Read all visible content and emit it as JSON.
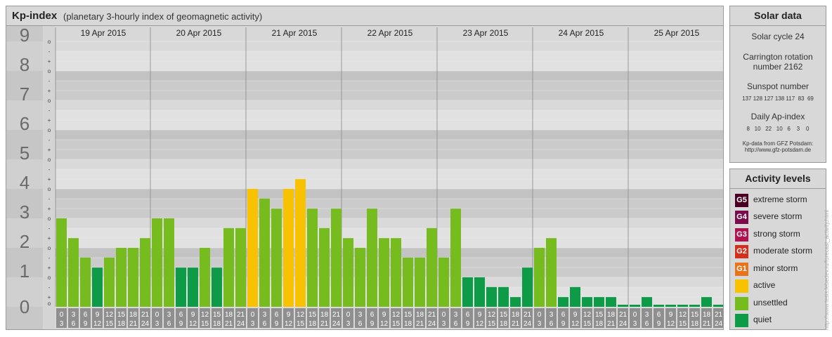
{
  "header": {
    "title": "Kp-index",
    "subtitle": "(planetary 3-hourly index of geomagnetic activity)"
  },
  "chart_data": {
    "type": "bar",
    "title": "Kp-index",
    "subtitle": "(planetary 3-hourly index of geomagnetic activity)",
    "ylim": [
      0,
      9
    ],
    "y_ticks": [
      "0",
      "1",
      "2",
      "3",
      "4",
      "5",
      "6",
      "7",
      "8",
      "9"
    ],
    "y_sub_ticks": [
      "o",
      "+",
      "-"
    ],
    "days": [
      "19 Apr 2015",
      "20 Apr 2015",
      "21 Apr 2015",
      "22 Apr 2015",
      "23 Apr 2015",
      "24 Apr 2015",
      "25 Apr 2015"
    ],
    "hour_top": [
      "0",
      "3",
      "6",
      "9",
      "12",
      "15",
      "18",
      "21"
    ],
    "hour_bottom": [
      "3",
      "6",
      "9",
      "12",
      "15",
      "18",
      "21",
      "24"
    ],
    "values": [
      3,
      2.33,
      1.67,
      1.33,
      1.67,
      2,
      2,
      2.33,
      3,
      3,
      1.33,
      1.33,
      2,
      1.33,
      2.67,
      2.67,
      4,
      3.67,
      3.33,
      4,
      4.33,
      3.33,
      2.67,
      3.33,
      2.33,
      2,
      3.33,
      2.33,
      2.33,
      1.67,
      1.67,
      2.67,
      1.67,
      3.33,
      1,
      1,
      0.67,
      0.67,
      0.33,
      1.33,
      2,
      2.33,
      0.33,
      0.67,
      0.33,
      0.33,
      0.33,
      0,
      0,
      0.33,
      0,
      0,
      0,
      0,
      0.33,
      0
    ],
    "level_colors": {
      "quiet": "#0d9b48",
      "unsettled": "#77bc1f",
      "active": "#f9c200"
    }
  },
  "solar": {
    "title": "Solar data",
    "cycle": "Solar cycle 24",
    "carrington_line1": "Carrington rotation",
    "carrington_line2": "number 2162",
    "sunspot_label": "Sunspot number",
    "sunspot_values": "137 128 127 138 117  83  69",
    "ap_label": "Daily Ap-index",
    "ap_values": "8   10   22   10   6    3    0",
    "source_line1": "Kp-data from GFZ Potsdam:",
    "source_line2": "http://www.gfz-potsdam.de"
  },
  "activity": {
    "title": "Activity levels",
    "items": [
      {
        "code": "G5",
        "label": "extreme storm",
        "color": "#4a0020"
      },
      {
        "code": "G4",
        "label": "severe storm",
        "color": "#7a0a4a"
      },
      {
        "code": "G3",
        "label": "strong storm",
        "color": "#b0124f"
      },
      {
        "code": "G2",
        "label": "moderate storm",
        "color": "#d2301a"
      },
      {
        "code": "G1",
        "label": "minor storm",
        "color": "#e8731a"
      },
      {
        "code": "",
        "label": "active",
        "color": "#f9c200"
      },
      {
        "code": "",
        "label": "unsettled",
        "color": "#77bc1f"
      },
      {
        "code": "",
        "label": "quiet",
        "color": "#0d9b48"
      }
    ]
  },
  "watermark": "http://www.tesis.lebedev.ru/forecast_activity.html"
}
